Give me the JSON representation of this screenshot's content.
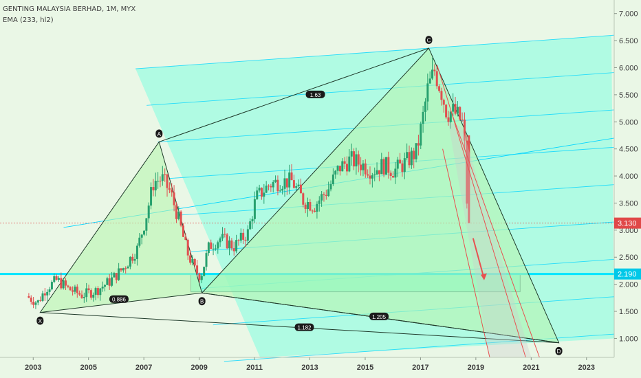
{
  "header": {
    "title": "GENTING MALAYSIA BERHAD, 1M, MYX",
    "indicator": "EMA (233, hl2)"
  },
  "colors": {
    "background": "#eaf7e6",
    "channel_fill": "#7fffe0",
    "channel_line": "#00d4ff",
    "harmonic_fill": "#b8f5b0",
    "harmonic_line": "#1f3a2a",
    "current_price": "#e04848",
    "level_line": "#00e5ff",
    "down_channel": "#e85050",
    "up_candle": "#27a06e",
    "down_candle": "#e05050"
  },
  "chart_data": {
    "type": "candlestick",
    "title": "GENTING MALAYSIA BERHAD, 1M, MYX",
    "xlabel": "",
    "ylabel": "",
    "x_ticks": [
      "2003",
      "2005",
      "2007",
      "2009",
      "2011",
      "2013",
      "2015",
      "2017",
      "2019",
      "2021",
      "2023"
    ],
    "y_ticks": [
      "1.000",
      "1.500",
      "2.000",
      "2.500",
      "3.000",
      "3.500",
      "4.000",
      "4.500",
      "5.000",
      "5.500",
      "6.000",
      "6.500",
      "7.000"
    ],
    "xlim": [
      2001.8,
      2024.0
    ],
    "ylim": [
      0.65,
      7.25
    ],
    "grid": false,
    "price_path": [
      [
        2002.8,
        1.78
      ],
      [
        2003.2,
        1.66
      ],
      [
        2003.5,
        1.92
      ],
      [
        2003.9,
        2.08
      ],
      [
        2004.3,
        1.92
      ],
      [
        2004.8,
        1.8
      ],
      [
        2005.3,
        1.88
      ],
      [
        2005.8,
        2.05
      ],
      [
        2006.3,
        2.3
      ],
      [
        2006.8,
        2.65
      ],
      [
        2007.1,
        3.2
      ],
      [
        2007.4,
        3.9
      ],
      [
        2007.7,
        3.95
      ],
      [
        2008.0,
        3.7
      ],
      [
        2008.3,
        3.2
      ],
      [
        2008.6,
        2.6
      ],
      [
        2008.9,
        2.25
      ],
      [
        2009.1,
        2.15
      ],
      [
        2009.4,
        2.7
      ],
      [
        2009.8,
        2.85
      ],
      [
        2010.3,
        2.7
      ],
      [
        2010.8,
        2.95
      ],
      [
        2011.1,
        3.6
      ],
      [
        2011.6,
        3.85
      ],
      [
        2012.0,
        3.9
      ],
      [
        2012.4,
        3.9
      ],
      [
        2012.8,
        3.55
      ],
      [
        2013.2,
        3.45
      ],
      [
        2013.7,
        3.75
      ],
      [
        2014.1,
        4.15
      ],
      [
        2014.5,
        4.3
      ],
      [
        2014.9,
        4.22
      ],
      [
        2015.3,
        4.1
      ],
      [
        2015.7,
        4.2
      ],
      [
        2016.1,
        4.1
      ],
      [
        2016.5,
        4.25
      ],
      [
        2016.9,
        4.45
      ],
      [
        2017.1,
        5.0
      ],
      [
        2017.3,
        5.6
      ],
      [
        2017.55,
        5.95
      ],
      [
        2017.8,
        5.55
      ],
      [
        2018.0,
        5.15
      ],
      [
        2018.2,
        5.2
      ],
      [
        2018.4,
        5.1
      ],
      [
        2018.6,
        4.95
      ],
      [
        2018.75,
        3.13
      ]
    ],
    "ema": {
      "name": "EMA (233, hl2)",
      "values": []
    },
    "harmonic_pattern": {
      "points": [
        {
          "label": "X",
          "x": 2003.25,
          "y": 1.48
        },
        {
          "label": "A",
          "x": 2007.55,
          "y": 4.63
        },
        {
          "label": "B",
          "x": 2009.1,
          "y": 1.84
        },
        {
          "label": "C",
          "x": 2017.3,
          "y": 6.36
        },
        {
          "label": "D",
          "x": 2022.0,
          "y": 0.92
        }
      ],
      "ratios": [
        {
          "label": "0.886",
          "x": 2006.1,
          "y": 1.72
        },
        {
          "label": "1.63",
          "x": 2013.2,
          "y": 5.5
        },
        {
          "label": "1.205",
          "x": 2015.5,
          "y": 1.4
        },
        {
          "label": "1.182",
          "x": 2012.8,
          "y": 1.2
        }
      ]
    },
    "pitchfork_channel": {
      "lines": [
        [
          [
            2004.1,
            3.05
          ],
          [
            2024.0,
            4.7
          ]
        ],
        [
          [
            2004.1,
            3.05
          ],
          [
            2024.0,
            4.7
          ]
        ]
      ],
      "upper": [
        [
          2006.7,
          5.98
        ],
        [
          2023.9,
          6.6
        ]
      ],
      "lower_offset_start": [
        [
          2007.8,
          5.98
        ],
        [
          2011.2,
          0.65
        ]
      ]
    },
    "support_zone": {
      "x": [
        2008.7,
        2020.6
      ],
      "y": [
        1.86,
        2.2
      ]
    },
    "level_line": {
      "value": 2.19,
      "label": "2.190"
    },
    "current_price": {
      "value": 3.13,
      "label": "3.130"
    },
    "projection_arrow": {
      "from": [
        2018.9,
        2.85
      ],
      "to": [
        2019.3,
        2.1
      ]
    }
  }
}
